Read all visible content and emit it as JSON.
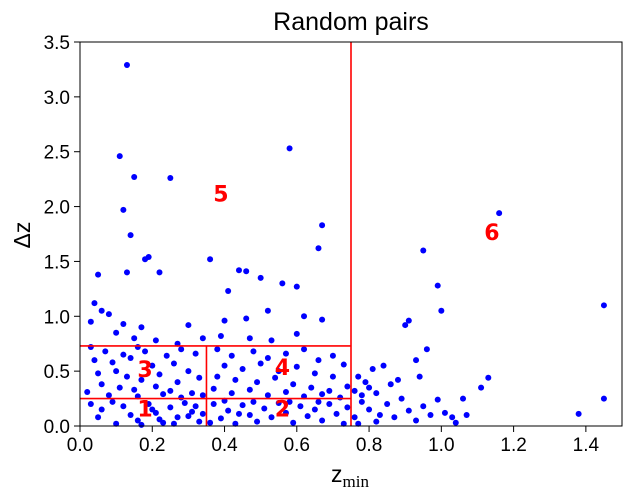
{
  "chart_data": {
    "type": "scatter",
    "title": "Random pairs",
    "xlabel": "z",
    "xlabel_subscript": "min",
    "ylabel": "Δz",
    "xlim": [
      0.0,
      1.5
    ],
    "ylim": [
      0.0,
      3.5
    ],
    "xticks": [
      "0.0",
      "0.2",
      "0.4",
      "0.6",
      "0.8",
      "1.0",
      "1.2",
      "1.4"
    ],
    "yticks": [
      "0.0",
      "0.5",
      "1.0",
      "1.5",
      "2.0",
      "2.5",
      "3.0",
      "3.5"
    ],
    "grid": false,
    "point_color": "#0000ff",
    "region_color": "#ff0000",
    "region_lines": [
      {
        "orientation": "vertical",
        "x": 0.75,
        "y_from": 0.0,
        "y_to": 3.5
      },
      {
        "orientation": "vertical",
        "x": 0.35,
        "y_from": 0.0,
        "y_to": 0.73
      },
      {
        "orientation": "horizontal",
        "y": 0.73,
        "x_from": 0.0,
        "x_to": 0.75
      },
      {
        "orientation": "horizontal",
        "y": 0.25,
        "x_from": 0.0,
        "x_to": 0.75
      }
    ],
    "region_labels": [
      {
        "text": "1",
        "x": 0.18,
        "y": 0.14
      },
      {
        "text": "2",
        "x": 0.56,
        "y": 0.14
      },
      {
        "text": "3",
        "x": 0.18,
        "y": 0.5
      },
      {
        "text": "4",
        "x": 0.56,
        "y": 0.52
      },
      {
        "text": "5",
        "x": 0.39,
        "y": 2.1
      },
      {
        "text": "6",
        "x": 1.14,
        "y": 1.75
      }
    ],
    "points": [
      [
        0.13,
        3.29
      ],
      [
        0.11,
        2.46
      ],
      [
        0.15,
        2.27
      ],
      [
        0.25,
        2.26
      ],
      [
        0.58,
        2.53
      ],
      [
        0.12,
        1.97
      ],
      [
        0.14,
        1.74
      ],
      [
        0.19,
        1.54
      ],
      [
        0.18,
        1.52
      ],
      [
        0.05,
        1.38
      ],
      [
        0.13,
        1.4
      ],
      [
        0.22,
        1.4
      ],
      [
        0.36,
        1.52
      ],
      [
        0.44,
        1.42
      ],
      [
        0.46,
        1.41
      ],
      [
        0.5,
        1.35
      ],
      [
        0.56,
        1.3
      ],
      [
        0.66,
        1.62
      ],
      [
        0.67,
        1.83
      ],
      [
        0.41,
        1.23
      ],
      [
        0.6,
        1.27
      ],
      [
        0.04,
        1.12
      ],
      [
        0.06,
        1.05
      ],
      [
        0.08,
        1.02
      ],
      [
        0.03,
        0.95
      ],
      [
        0.12,
        0.93
      ],
      [
        0.17,
        0.9
      ],
      [
        0.3,
        0.92
      ],
      [
        0.4,
        0.96
      ],
      [
        0.46,
        0.98
      ],
      [
        0.52,
        1.05
      ],
      [
        0.62,
        1.0
      ],
      [
        0.67,
        0.97
      ],
      [
        0.1,
        0.85
      ],
      [
        0.15,
        0.8
      ],
      [
        0.21,
        0.78
      ],
      [
        0.27,
        0.75
      ],
      [
        0.34,
        0.8
      ],
      [
        0.39,
        0.82
      ],
      [
        0.47,
        0.8
      ],
      [
        0.53,
        0.78
      ],
      [
        0.6,
        0.84
      ],
      [
        0.03,
        0.72
      ],
      [
        0.07,
        0.68
      ],
      [
        0.12,
        0.65
      ],
      [
        0.16,
        0.72
      ],
      [
        0.18,
        0.68
      ],
      [
        0.24,
        0.64
      ],
      [
        0.28,
        0.7
      ],
      [
        0.32,
        0.66
      ],
      [
        0.04,
        0.6
      ],
      [
        0.09,
        0.58
      ],
      [
        0.14,
        0.62
      ],
      [
        0.2,
        0.55
      ],
      [
        0.26,
        0.57
      ],
      [
        0.3,
        0.5
      ],
      [
        0.05,
        0.48
      ],
      [
        0.1,
        0.5
      ],
      [
        0.13,
        0.45
      ],
      [
        0.17,
        0.42
      ],
      [
        0.22,
        0.47
      ],
      [
        0.27,
        0.4
      ],
      [
        0.33,
        0.44
      ],
      [
        0.06,
        0.38
      ],
      [
        0.11,
        0.35
      ],
      [
        0.15,
        0.33
      ],
      [
        0.21,
        0.36
      ],
      [
        0.25,
        0.32
      ],
      [
        0.31,
        0.3
      ],
      [
        0.02,
        0.31
      ],
      [
        0.08,
        0.28
      ],
      [
        0.16,
        0.27
      ],
      [
        0.23,
        0.29
      ],
      [
        0.28,
        0.26
      ],
      [
        0.34,
        0.28
      ],
      [
        0.38,
        0.7
      ],
      [
        0.42,
        0.64
      ],
      [
        0.48,
        0.68
      ],
      [
        0.52,
        0.62
      ],
      [
        0.57,
        0.66
      ],
      [
        0.62,
        0.7
      ],
      [
        0.66,
        0.6
      ],
      [
        0.7,
        0.64
      ],
      [
        0.73,
        0.56
      ],
      [
        0.4,
        0.55
      ],
      [
        0.45,
        0.52
      ],
      [
        0.5,
        0.57
      ],
      [
        0.55,
        0.5
      ],
      [
        0.6,
        0.54
      ],
      [
        0.65,
        0.48
      ],
      [
        0.7,
        0.45
      ],
      [
        0.38,
        0.45
      ],
      [
        0.43,
        0.42
      ],
      [
        0.49,
        0.4
      ],
      [
        0.54,
        0.44
      ],
      [
        0.59,
        0.38
      ],
      [
        0.64,
        0.35
      ],
      [
        0.69,
        0.32
      ],
      [
        0.74,
        0.36
      ],
      [
        0.37,
        0.34
      ],
      [
        0.42,
        0.3
      ],
      [
        0.47,
        0.33
      ],
      [
        0.52,
        0.28
      ],
      [
        0.57,
        0.31
      ],
      [
        0.62,
        0.27
      ],
      [
        0.67,
        0.29
      ],
      [
        0.72,
        0.26
      ],
      [
        0.03,
        0.2
      ],
      [
        0.06,
        0.15
      ],
      [
        0.09,
        0.22
      ],
      [
        0.12,
        0.18
      ],
      [
        0.14,
        0.1
      ],
      [
        0.16,
        0.05
      ],
      [
        0.19,
        0.2
      ],
      [
        0.21,
        0.12
      ],
      [
        0.23,
        0.03
      ],
      [
        0.25,
        0.17
      ],
      [
        0.27,
        0.08
      ],
      [
        0.29,
        0.21
      ],
      [
        0.31,
        0.13
      ],
      [
        0.33,
        0.04
      ],
      [
        0.05,
        0.08
      ],
      [
        0.1,
        0.02
      ],
      [
        0.17,
        0.01
      ],
      [
        0.2,
        0.15
      ],
      [
        0.22,
        0.06
      ],
      [
        0.26,
        0.02
      ],
      [
        0.3,
        0.09
      ],
      [
        0.32,
        0.18
      ],
      [
        0.34,
        0.11
      ],
      [
        0.37,
        0.2
      ],
      [
        0.39,
        0.07
      ],
      [
        0.41,
        0.14
      ],
      [
        0.43,
        0.02
      ],
      [
        0.45,
        0.19
      ],
      [
        0.47,
        0.1
      ],
      [
        0.49,
        0.04
      ],
      [
        0.51,
        0.16
      ],
      [
        0.53,
        0.08
      ],
      [
        0.55,
        0.21
      ],
      [
        0.57,
        0.12
      ],
      [
        0.59,
        0.03
      ],
      [
        0.61,
        0.18
      ],
      [
        0.63,
        0.09
      ],
      [
        0.65,
        0.15
      ],
      [
        0.67,
        0.05
      ],
      [
        0.69,
        0.2
      ],
      [
        0.71,
        0.11
      ],
      [
        0.73,
        0.02
      ],
      [
        0.74,
        0.17
      ],
      [
        0.36,
        0.03
      ],
      [
        0.4,
        0.23
      ],
      [
        0.44,
        0.11
      ],
      [
        0.48,
        0.22
      ],
      [
        0.58,
        0.22
      ],
      [
        0.66,
        0.22
      ],
      [
        0.76,
        0.32
      ],
      [
        0.78,
        0.28
      ],
      [
        0.8,
        0.35
      ],
      [
        0.82,
        0.3
      ],
      [
        0.78,
        0.22
      ],
      [
        0.8,
        0.15
      ],
      [
        0.83,
        0.1
      ],
      [
        0.85,
        0.2
      ],
      [
        0.87,
        0.08
      ],
      [
        0.89,
        0.25
      ],
      [
        0.91,
        0.14
      ],
      [
        0.93,
        0.05
      ],
      [
        0.95,
        0.18
      ],
      [
        0.97,
        0.1
      ],
      [
        0.99,
        0.24
      ],
      [
        1.01,
        0.12
      ],
      [
        1.03,
        0.08
      ],
      [
        0.77,
        0.45
      ],
      [
        0.79,
        0.4
      ],
      [
        0.81,
        0.52
      ],
      [
        0.84,
        0.55
      ],
      [
        0.86,
        0.38
      ],
      [
        0.88,
        0.42
      ],
      [
        0.9,
        0.92
      ],
      [
        0.91,
        0.96
      ],
      [
        0.95,
        1.6
      ],
      [
        0.99,
        1.28
      ],
      [
        1.0,
        1.05
      ],
      [
        0.96,
        0.7
      ],
      [
        0.93,
        0.6
      ],
      [
        0.94,
        0.45
      ],
      [
        1.06,
        0.25
      ],
      [
        1.07,
        0.1
      ],
      [
        1.11,
        0.35
      ],
      [
        1.13,
        0.44
      ],
      [
        1.16,
        1.94
      ],
      [
        1.38,
        0.11
      ],
      [
        1.45,
        1.1
      ],
      [
        1.45,
        0.25
      ],
      [
        1.04,
        0.03
      ],
      [
        0.82,
        0.04
      ],
      [
        0.76,
        0.08
      ],
      [
        0.77,
        0.02
      ]
    ]
  }
}
